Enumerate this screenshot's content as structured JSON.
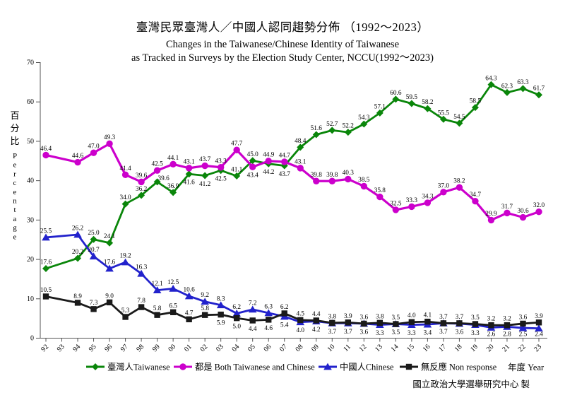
{
  "title": {
    "line1_zh": "臺灣民眾臺灣人／中國人認同趨勢分佈 （1992～2023）",
    "line2_en": "Changes in the Taiwanese/Chinese Identity of Taiwanese",
    "line3_en": "as Tracked in Surveys by the Election Study Center, NCCU(1992～2023)"
  },
  "y_axis": {
    "unit_zh": "百分比",
    "unit_en": "Percentage",
    "ticks": [
      0,
      10,
      20,
      30,
      40,
      50,
      60,
      70
    ]
  },
  "x_axis": {
    "title": "年度 Year",
    "tick_labels": [
      "92",
      "93",
      "94",
      "95",
      "96",
      "97",
      "98",
      "99",
      "00",
      "01",
      "02",
      "03",
      "04",
      "05",
      "06",
      "07",
      "08",
      "09",
      "10",
      "11",
      "12",
      "13",
      "14",
      "15",
      "16",
      "17",
      "18",
      "19",
      "20",
      "21",
      "22",
      "23"
    ]
  },
  "source_credit": "國立政治大學選舉研究中心 製",
  "chart_data": {
    "type": "line",
    "title": "臺灣民眾臺灣人／中國人認同趨勢分佈 （1992～2023）",
    "xlabel": "年度 Year",
    "ylabel": "百分比 Percentage",
    "ylim": [
      0,
      70
    ],
    "grid": false,
    "legend_position": "bottom",
    "x_years": [
      "92",
      "94",
      "95",
      "96",
      "97",
      "98",
      "99",
      "00",
      "01",
      "02",
      "03",
      "04",
      "05",
      "06",
      "07",
      "08",
      "09",
      "10",
      "11",
      "12",
      "13",
      "14",
      "15",
      "16",
      "17",
      "18",
      "19",
      "20",
      "21",
      "22",
      "23"
    ],
    "series": [
      {
        "key": "taiwanese",
        "name": "臺灣人Taiwanese",
        "color": "#0a860a",
        "marker": "diamond",
        "values": [
          17.6,
          20.2,
          25.0,
          24.1,
          34.0,
          36.2,
          39.6,
          36.9,
          41.6,
          41.2,
          42.5,
          41.1,
          45.0,
          44.2,
          43.7,
          48.4,
          51.6,
          52.7,
          52.2,
          54.3,
          57.1,
          60.6,
          59.5,
          58.2,
          55.5,
          54.5,
          58.5,
          64.3,
          62.3,
          63.3,
          61.7
        ],
        "labels_below": [
          "01",
          "02",
          "03",
          "06",
          "07"
        ]
      },
      {
        "key": "both",
        "name": "都是 Both Taiwanese and Chinese",
        "color": "#cc00cc",
        "marker": "circle",
        "values": [
          46.4,
          44.6,
          47.0,
          49.3,
          41.4,
          39.6,
          42.5,
          44.1,
          43.1,
          43.7,
          43.3,
          47.7,
          43.4,
          44.9,
          44.7,
          43.1,
          39.8,
          39.8,
          40.3,
          38.5,
          35.8,
          32.5,
          33.3,
          34.3,
          37.0,
          38.2,
          34.7,
          29.9,
          31.7,
          30.6,
          32.0
        ],
        "labels_below": [
          "05"
        ]
      },
      {
        "key": "chinese",
        "name": "中國人Chinese",
        "color": "#2222cc",
        "marker": "triangle",
        "values": [
          25.5,
          26.2,
          20.7,
          17.6,
          19.2,
          16.3,
          12.1,
          12.5,
          10.6,
          9.2,
          8.3,
          6.2,
          7.2,
          6.3,
          5.4,
          4.0,
          4.2,
          3.7,
          3.7,
          3.6,
          3.3,
          3.5,
          3.3,
          3.4,
          3.7,
          3.6,
          3.3,
          2.6,
          2.8,
          2.5,
          2.4
        ],
        "labels_below": [
          "07",
          "08",
          "09",
          "10",
          "11",
          "12",
          "13",
          "14",
          "15",
          "16",
          "17",
          "18",
          "19",
          "20",
          "21",
          "22",
          "23"
        ]
      },
      {
        "key": "nonresponse",
        "name": "無反應 Non response",
        "color": "#1a1a1a",
        "marker": "square",
        "values": [
          10.5,
          8.9,
          7.3,
          9.0,
          5.3,
          7.8,
          5.8,
          6.5,
          4.7,
          5.8,
          5.9,
          5.0,
          4.4,
          4.6,
          6.2,
          4.5,
          4.4,
          3.8,
          3.9,
          3.6,
          3.8,
          3.5,
          4.0,
          4.1,
          3.7,
          3.7,
          3.5,
          3.2,
          3.2,
          3.6,
          3.9
        ],
        "labels_below": [
          "03",
          "04",
          "05",
          "06"
        ]
      }
    ]
  }
}
